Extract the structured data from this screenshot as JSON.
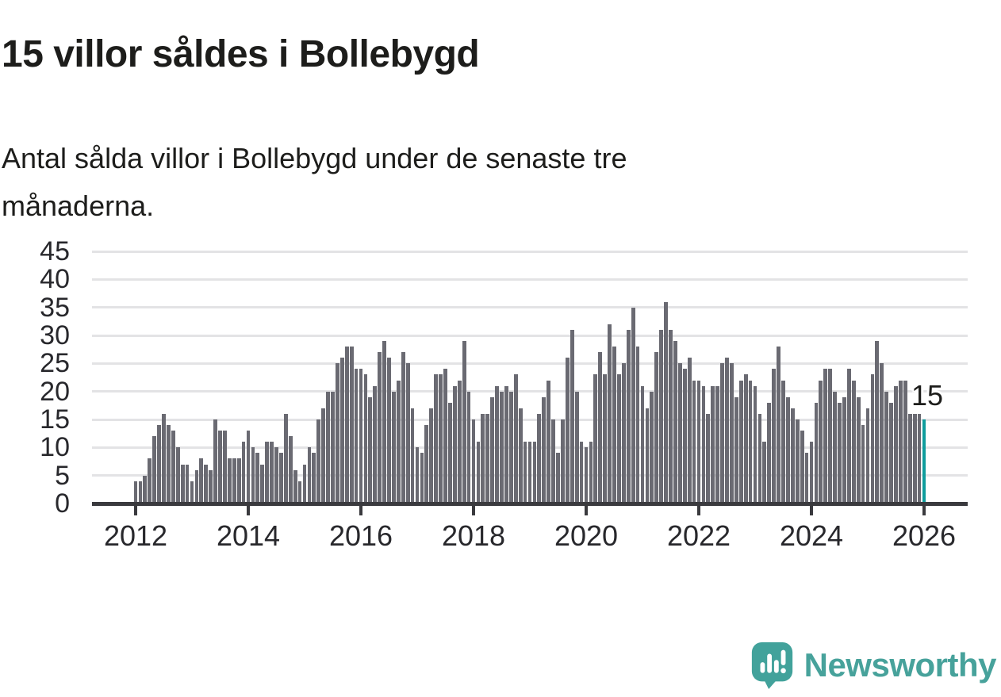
{
  "header": {
    "title": "15 villor såldes i Bollebygd",
    "subtitle": "Antal sålda villor i Bollebygd under de senaste tre månaderna."
  },
  "annotation": {
    "label": "15"
  },
  "footer": {
    "brand": "Newsworthy",
    "logo_icon": "newsworthy-speech-bubble-chart-icon"
  },
  "colors": {
    "bar": "#6a6a72",
    "highlight_bar": "#0f9d9d",
    "gridline": "#e3e3e5",
    "axis": "#3a3a3e",
    "text": "#1d1d1b",
    "brand_teal": "#47a29b"
  },
  "chart_data": {
    "type": "bar",
    "title": "15 villor såldes i Bollebygd",
    "subtitle": "Antal sålda villor i Bollebygd under de senaste tre månaderna.",
    "xlabel": "",
    "ylabel": "",
    "x_interval": "monthly",
    "x_start": "2012-01",
    "x_end": "2026-01",
    "x_tick_labels": [
      "2012",
      "2014",
      "2016",
      "2018",
      "2020",
      "2022",
      "2024",
      "2026"
    ],
    "y_ticks": [
      0,
      5,
      10,
      15,
      20,
      25,
      30,
      35,
      40,
      45
    ],
    "ylim": [
      0,
      45
    ],
    "grid": "horizontal",
    "legend": "none",
    "highlighted_last_value": 15,
    "values": [
      4,
      4,
      5,
      8,
      12,
      14,
      16,
      14,
      13,
      10,
      7,
      7,
      4,
      6,
      8,
      7,
      6,
      15,
      13,
      13,
      8,
      8,
      8,
      11,
      13,
      10,
      9,
      7,
      11,
      11,
      10,
      9,
      16,
      12,
      6,
      4,
      7,
      10,
      9,
      15,
      17,
      20,
      20,
      25,
      26,
      28,
      28,
      24,
      24,
      23,
      19,
      21,
      27,
      29,
      26,
      20,
      22,
      27,
      25,
      17,
      10,
      9,
      14,
      17,
      23,
      23,
      24,
      18,
      21,
      22,
      29,
      20,
      15,
      11,
      16,
      16,
      19,
      21,
      20,
      21,
      20,
      23,
      17,
      11,
      11,
      11,
      16,
      19,
      22,
      15,
      9,
      15,
      26,
      31,
      20,
      11,
      10,
      11,
      23,
      27,
      23,
      32,
      28,
      23,
      25,
      31,
      35,
      28,
      21,
      17,
      20,
      27,
      31,
      36,
      31,
      29,
      25,
      24,
      26,
      22,
      22,
      21,
      16,
      21,
      21,
      25,
      26,
      25,
      19,
      22,
      23,
      22,
      21,
      16,
      11,
      18,
      24,
      28,
      22,
      19,
      17,
      15,
      13,
      9,
      11,
      18,
      22,
      24,
      24,
      20,
      18,
      19,
      24,
      22,
      19,
      14,
      17,
      23,
      29,
      25,
      20,
      18,
      21,
      22,
      22,
      16,
      16,
      16,
      15
    ]
  }
}
